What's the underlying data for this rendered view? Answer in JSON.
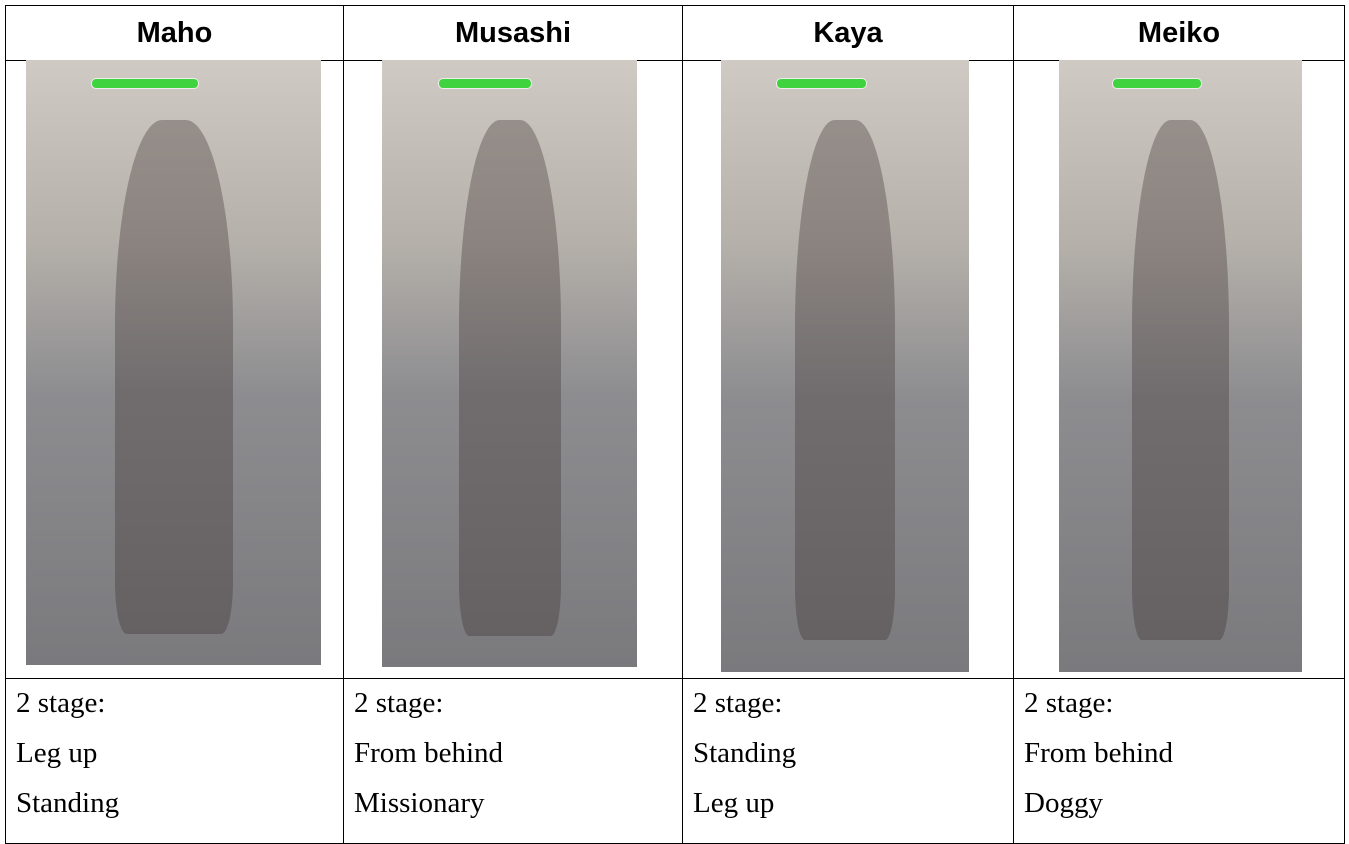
{
  "table": {
    "columns": [
      {
        "name": "Maho",
        "lines": [
          "2 stage:",
          "Leg up",
          "Standing"
        ]
      },
      {
        "name": "Musashi",
        "lines": [
          "2 stage:",
          "From behind",
          "Missionary"
        ]
      },
      {
        "name": "Kaya",
        "lines": [
          "2 stage:",
          "Standing",
          "Leg up"
        ]
      },
      {
        "name": "Meiko",
        "lines": [
          "2 stage:",
          "From behind",
          "Doggy"
        ]
      }
    ]
  }
}
